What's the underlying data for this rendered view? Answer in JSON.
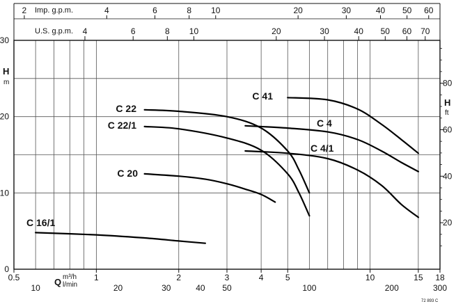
{
  "chart_data": {
    "type": "line",
    "top_scales": [
      {
        "name": "imp",
        "unit_label": "Imp. g.p.m.",
        "ticks": [
          2,
          4,
          6,
          8,
          10,
          20,
          30,
          40,
          50,
          60
        ],
        "factor": 0.2728
      },
      {
        "name": "us",
        "unit_label": "U.S. g.p.m.",
        "ticks": [
          4,
          6,
          8,
          10,
          20,
          30,
          40,
          50,
          60,
          70
        ],
        "factor": 0.2271
      }
    ],
    "x_axis": {
      "label": "Q",
      "unit_m3h": "m³/h",
      "unit_lmin": "l/min",
      "scale": "log",
      "xlim": [
        0.5,
        18
      ],
      "ticks_m3h": [
        0.5,
        1,
        2,
        3,
        4,
        5,
        10,
        15,
        18
      ],
      "ticks_lmin": [
        10,
        20,
        30,
        40,
        50,
        100,
        200,
        300
      ]
    },
    "y_axis_left": {
      "label": "H",
      "unit": "m",
      "ylim": [
        0,
        30
      ],
      "ticks": [
        0,
        10,
        20,
        30
      ]
    },
    "y_axis_right": {
      "label": "H",
      "unit": "ft",
      "ticks": [
        20,
        40,
        60,
        80
      ]
    },
    "series": [
      {
        "name": "C 16/1",
        "x": [
          0.6,
          1.0,
          1.5,
          2.0,
          2.5
        ],
        "y": [
          4.8,
          4.5,
          4.1,
          3.7,
          3.4
        ]
      },
      {
        "name": "C 20",
        "x": [
          1.5,
          2.0,
          2.5,
          3.0,
          3.5,
          4.0,
          4.5
        ],
        "y": [
          12.5,
          12.2,
          11.8,
          11.2,
          10.5,
          9.8,
          8.8
        ]
      },
      {
        "name": "C 22/1",
        "x": [
          1.5,
          2.0,
          3.0,
          4.0,
          5.0,
          5.5,
          6.0
        ],
        "y": [
          18.7,
          18.4,
          17.2,
          15.6,
          12.5,
          10.0,
          7.0
        ]
      },
      {
        "name": "C 22",
        "x": [
          1.5,
          2.0,
          3.0,
          4.0,
          5.0,
          5.5,
          6.0
        ],
        "y": [
          20.9,
          20.7,
          20.0,
          18.5,
          15.5,
          13.0,
          10.0
        ]
      },
      {
        "name": "C 4/1",
        "x": [
          3.5,
          5.0,
          7.0,
          9.0,
          11.0,
          13.0,
          15.0
        ],
        "y": [
          15.5,
          15.2,
          14.5,
          13.0,
          11.0,
          8.5,
          6.8
        ]
      },
      {
        "name": "C 4",
        "x": [
          3.5,
          5.0,
          7.0,
          9.0,
          11.0,
          13.0,
          15.0
        ],
        "y": [
          18.8,
          18.5,
          18.0,
          17.0,
          15.5,
          14.0,
          12.8
        ]
      },
      {
        "name": "C 41",
        "x": [
          5.0,
          7.0,
          9.0,
          11.0,
          13.0,
          15.0
        ],
        "y": [
          22.5,
          22.2,
          21.0,
          19.0,
          17.0,
          15.2
        ]
      }
    ],
    "corner_code": "72 893 C"
  }
}
